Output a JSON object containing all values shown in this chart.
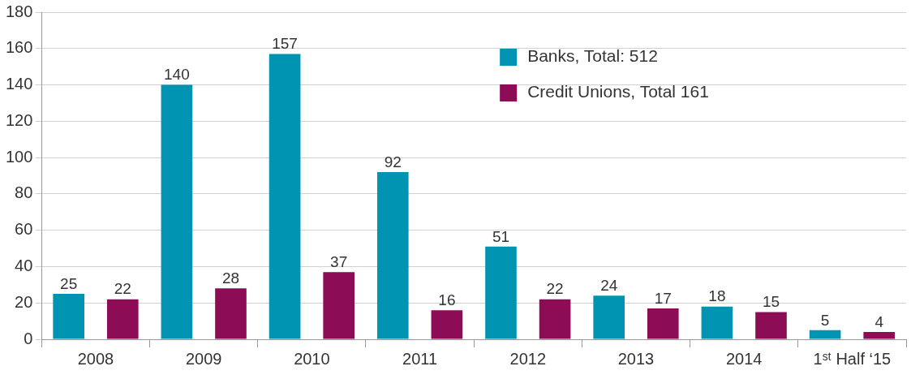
{
  "chart_data": {
    "type": "bar",
    "categories": [
      "2008",
      "2009",
      "2010",
      "2011",
      "2012",
      "2013",
      "2014",
      "1ˢᵗ Half ‘15"
    ],
    "series": [
      {
        "name": "Banks, Total: 512",
        "color": "#0093b2",
        "values": [
          25,
          140,
          157,
          92,
          51,
          24,
          18,
          5
        ]
      },
      {
        "name": "Credit Unions, Total 161",
        "color": "#8c0d55",
        "values": [
          22,
          28,
          37,
          16,
          22,
          17,
          15,
          4
        ]
      }
    ],
    "ylim": [
      0,
      180
    ],
    "yticks": [
      0,
      20,
      40,
      60,
      80,
      100,
      120,
      140,
      160,
      180
    ],
    "grid": "y",
    "legend": "top right",
    "data_labels": true
  }
}
